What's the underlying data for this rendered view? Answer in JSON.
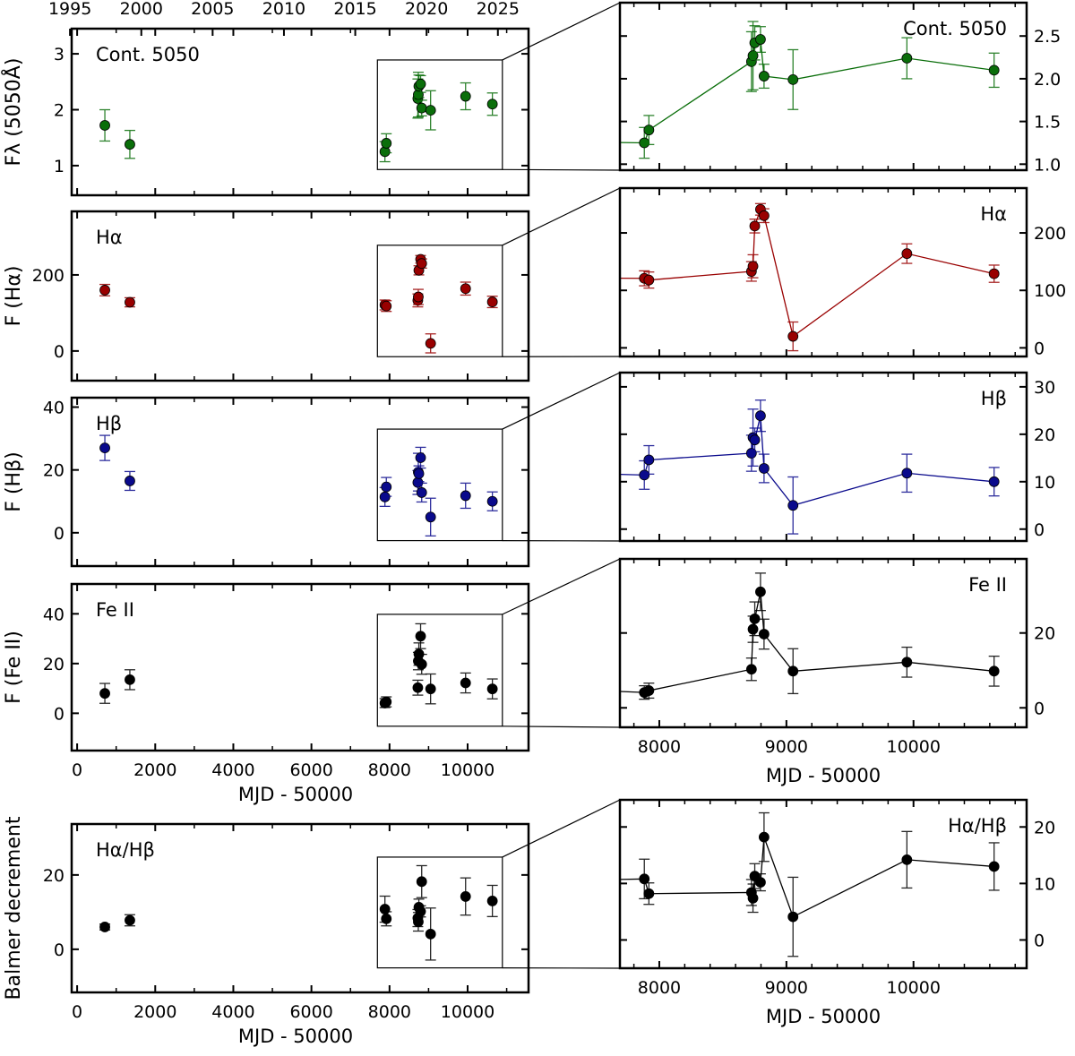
{
  "chart_data": {
    "type": "scatter",
    "xlabel": "MJD - 50000",
    "top_axis": {
      "ticks": [
        1995,
        2000,
        2005,
        2010,
        2015,
        2020,
        2025
      ]
    },
    "x_left": {
      "lim": [
        -140,
        11560
      ],
      "ticks": [
        0,
        2000,
        4000,
        6000,
        8000,
        10000
      ]
    },
    "x_zoom": {
      "lim": [
        7690,
        10890
      ],
      "ticks": [
        8000,
        9000,
        10000
      ]
    },
    "x": [
      710,
      1350,
      7882,
      7918,
      8725,
      8737,
      8751,
      8796,
      8824,
      9052,
      9948,
      10634
    ],
    "panels": [
      {
        "label": "Cont. 5050",
        "ylabel": "Fλ (5050Å)",
        "color": "#0a6e0a",
        "y": [
          1.72,
          1.38,
          1.25,
          1.4,
          2.2,
          2.27,
          2.42,
          2.46,
          2.03,
          1.99,
          2.24,
          2.1
        ],
        "yerr": [
          0.28,
          0.25,
          0.18,
          0.17,
          0.35,
          0.4,
          0.2,
          0.15,
          0.14,
          0.35,
          0.24,
          0.2
        ],
        "ylim_left": [
          0.47,
          3.45
        ],
        "yticks_left": [
          "1",
          "2",
          "3"
        ],
        "ylim_zoom": [
          0.93,
          2.89
        ],
        "yticks_zoom": [
          "1.0",
          "1.5",
          "2.0",
          "2.5"
        ]
      },
      {
        "label": "Hα",
        "ylabel": "F (Hα)",
        "color": "#990000",
        "y": [
          160,
          128,
          121,
          118,
          133,
          142,
          212,
          241,
          230,
          20,
          164,
          129
        ],
        "yerr": [
          15,
          12,
          13,
          14,
          17,
          20,
          12,
          10,
          12,
          25,
          17,
          15
        ],
        "ylim_left": [
          -78,
          367
        ],
        "yticks_left": [
          "0",
          "200"
        ],
        "ylim_zoom": [
          -15,
          278
        ],
        "yticks_zoom": [
          "0",
          "100",
          "200"
        ]
      },
      {
        "label": "Hβ",
        "ylabel": "F (Hβ)",
        "color": "#0a0a8c",
        "y": [
          27,
          16.5,
          11.4,
          14.6,
          16.0,
          19.3,
          18.8,
          23.9,
          12.8,
          5.0,
          11.8,
          10.0
        ],
        "yerr": [
          4,
          3,
          3,
          3,
          3.8,
          6,
          2.5,
          3.3,
          3,
          6,
          4,
          3
        ],
        "ylim_left": [
          -10.6,
          43
        ],
        "yticks_left": [
          "0",
          "20",
          "40"
        ],
        "ylim_zoom": [
          -2.5,
          33
        ],
        "yticks_zoom": [
          "0",
          "10",
          "20",
          "30"
        ]
      },
      {
        "label": "Fe II",
        "ylabel": "F (Fe II)",
        "color": "#000000",
        "y": [
          8,
          13.5,
          4.1,
          4.6,
          10.3,
          21,
          23.8,
          31,
          19.7,
          9.8,
          12.2,
          9.8
        ],
        "yerr": [
          4,
          4,
          1.8,
          2,
          3,
          3.5,
          4.5,
          5,
          4,
          6,
          4,
          4
        ],
        "ylim_left": [
          -15,
          52
        ],
        "yticks_left": [
          "0",
          "20",
          "40"
        ],
        "ylim_zoom": [
          -5.2,
          39.8
        ],
        "yticks_zoom": [
          "0",
          "20"
        ]
      },
      {
        "label": "Hα/Hβ",
        "ylabel": "Balmer decrement",
        "color": "#000000",
        "y": [
          6,
          7.8,
          10.8,
          8.2,
          8.4,
          7.4,
          11.3,
          10.2,
          18.2,
          4.1,
          14.2,
          13.0
        ],
        "yerr": [
          0.8,
          1.5,
          3.5,
          1.9,
          2.3,
          2.5,
          2.2,
          1.5,
          4.3,
          7,
          5,
          4.2
        ],
        "ylim_left": [
          -11.6,
          33.7
        ],
        "yticks_left": [
          "0",
          "20"
        ],
        "ylim_zoom": [
          -5,
          24.8
        ],
        "yticks_zoom": [
          "0",
          "10",
          "20"
        ]
      }
    ]
  }
}
